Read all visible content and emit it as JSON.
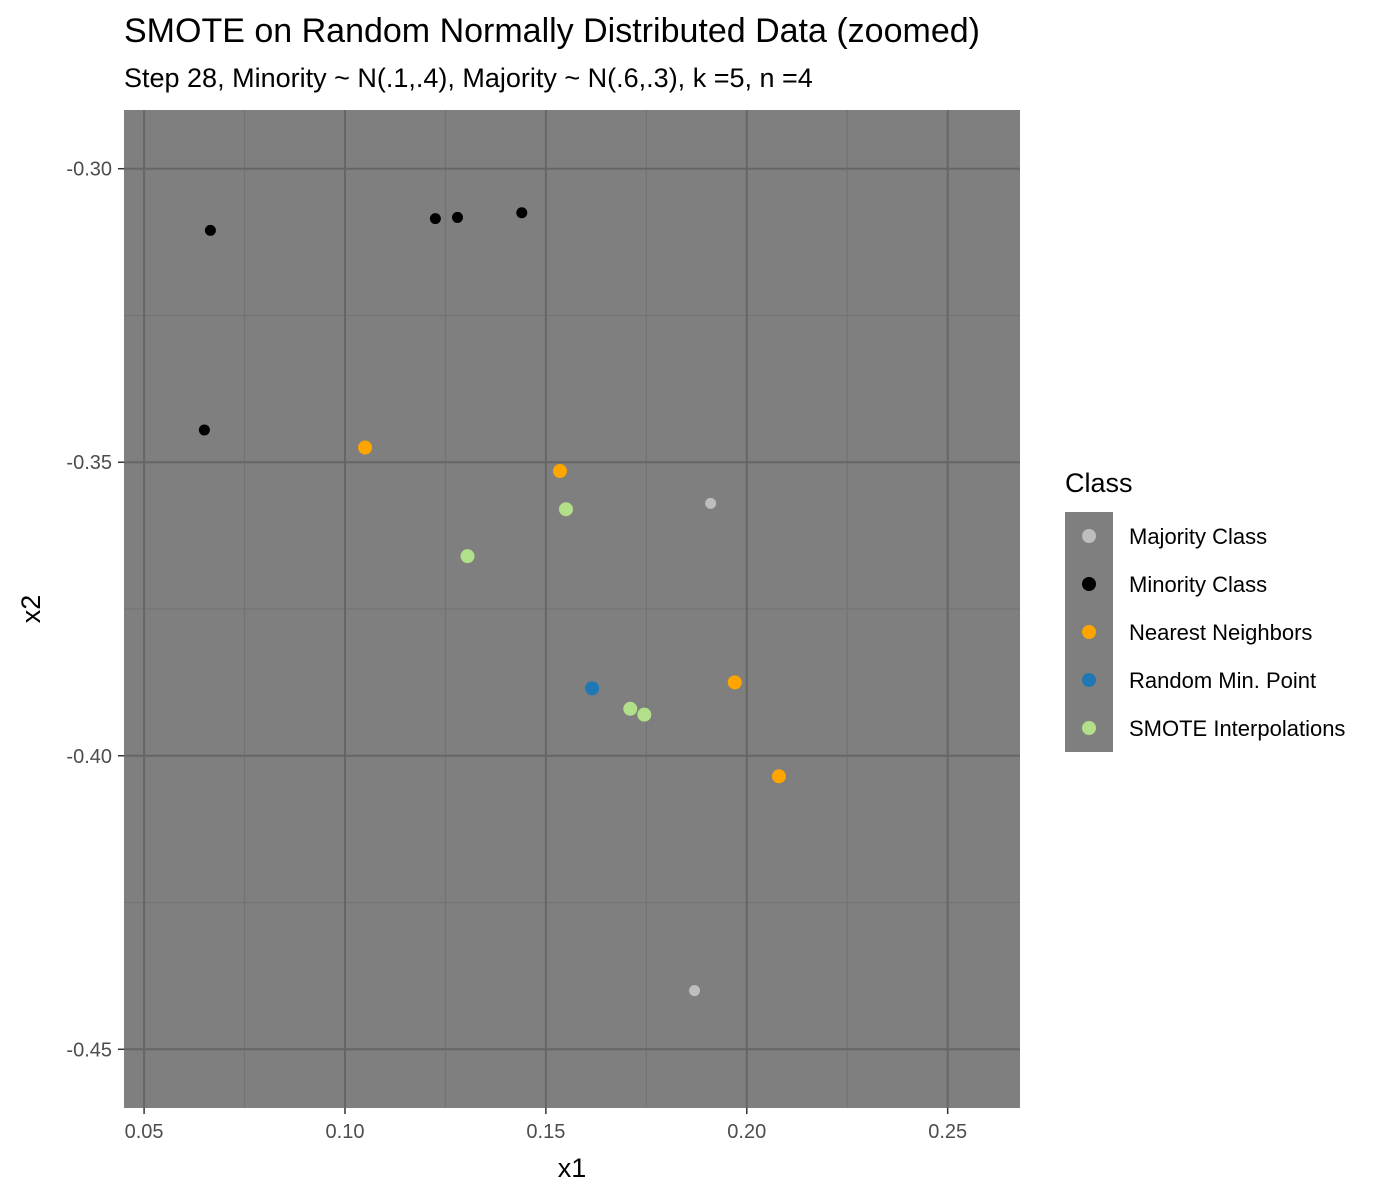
{
  "chart_data": {
    "type": "scatter",
    "title": "SMOTE on Random Normally Distributed Data (zoomed)",
    "subtitle": "Step 28, Minority ~ N(.1,.4), Majority ~ N(.6,.3), k =5, n =4",
    "xlabel": "x1",
    "ylabel": "x2",
    "xlim": [
      0.045,
      0.268
    ],
    "ylim": [
      -0.46,
      -0.29
    ],
    "xticks": [
      0.05,
      0.1,
      0.15,
      0.2,
      0.25
    ],
    "xtick_labels": [
      "0.05",
      "0.10",
      "0.15",
      "0.20",
      "0.25"
    ],
    "yticks": [
      -0.3,
      -0.35,
      -0.4,
      -0.45
    ],
    "ytick_labels": [
      "-0.30",
      "-0.35",
      "-0.40",
      "-0.45"
    ],
    "grid": true,
    "panel_background": "#7f7f7f",
    "legend": {
      "title": "Class",
      "placement": "right"
    },
    "series": [
      {
        "name": "Majority Class",
        "color": "#bebebe",
        "marker_size": "small",
        "points": [
          [
            0.191,
            -0.357
          ],
          [
            0.187,
            -0.44
          ]
        ]
      },
      {
        "name": "Minority Class",
        "color": "#000000",
        "marker_size": "small",
        "points": [
          [
            0.0665,
            -0.3105
          ],
          [
            0.1225,
            -0.3085
          ],
          [
            0.128,
            -0.3083
          ],
          [
            0.144,
            -0.3075
          ],
          [
            0.065,
            -0.3445
          ]
        ]
      },
      {
        "name": "Nearest Neighbors",
        "color": "#ffa500",
        "marker_size": "large",
        "points": [
          [
            0.105,
            -0.3475
          ],
          [
            0.1535,
            -0.3515
          ],
          [
            0.197,
            -0.3875
          ],
          [
            0.208,
            -0.4035
          ]
        ]
      },
      {
        "name": "Random Min. Point",
        "color": "#1f78b4",
        "marker_size": "large",
        "points": [
          [
            0.1615,
            -0.3885
          ]
        ]
      },
      {
        "name": "SMOTE Interpolations",
        "color": "#b2df8a",
        "marker_size": "large",
        "points": [
          [
            0.155,
            -0.358
          ],
          [
            0.1305,
            -0.366
          ],
          [
            0.171,
            -0.392
          ],
          [
            0.1745,
            -0.393
          ]
        ]
      }
    ]
  }
}
